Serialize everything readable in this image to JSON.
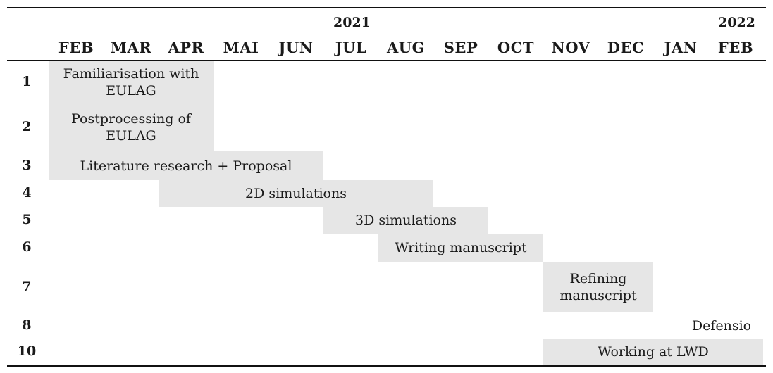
{
  "years": [
    {
      "label": "2021",
      "month_index": 5
    },
    {
      "label": "2022",
      "month_index": 12
    }
  ],
  "months": [
    "FEB",
    "MAR",
    "APR",
    "MAI",
    "JUN",
    "JUL",
    "AUG",
    "SEP",
    "OCT",
    "NOV",
    "DEC",
    "JAN",
    "FEB"
  ],
  "tasks": [
    {
      "num": "1",
      "label": [
        "Familiarisation with",
        "EULAG"
      ],
      "start": 0,
      "end": 2
    },
    {
      "num": "2",
      "label": [
        "Postprocessing of",
        "EULAG"
      ],
      "start": 0,
      "end": 2
    },
    {
      "num": "3",
      "label": [
        "Literature research + Proposal"
      ],
      "start": 0,
      "end": 4
    },
    {
      "num": "4",
      "label": [
        "2D simulations"
      ],
      "start": 2,
      "end": 6
    },
    {
      "num": "5",
      "label": [
        "3D simulations"
      ],
      "start": 5,
      "end": 7
    },
    {
      "num": "6",
      "label": [
        "Writing manuscript"
      ],
      "start": 6,
      "end": 8
    },
    {
      "num": "7",
      "label": [
        "Refining",
        "manuscript"
      ],
      "start": 9,
      "end": 10
    },
    {
      "num": "8",
      "label": [
        "Defensio"
      ],
      "start": 12,
      "end": 12
    },
    {
      "num": "10",
      "label": [
        "Working at LWD"
      ],
      "start": 9,
      "end": 12
    }
  ]
}
